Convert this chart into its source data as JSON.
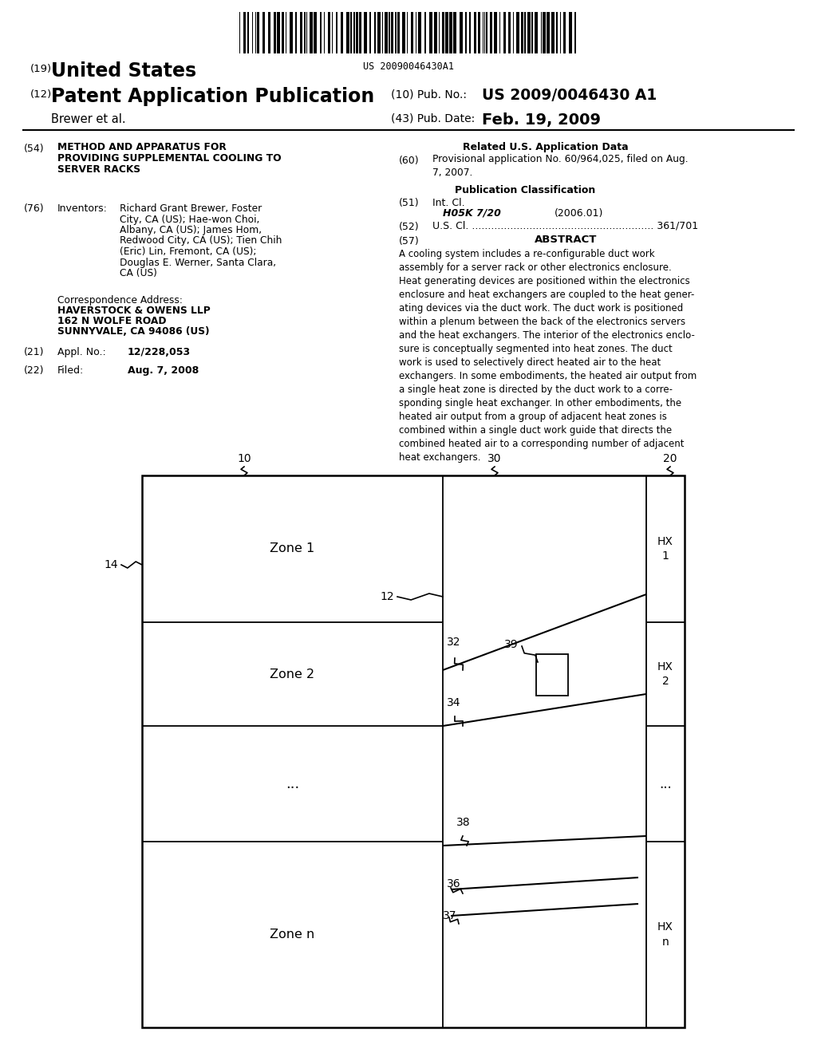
{
  "bg_color": "#ffffff",
  "barcode_text": "US 20090046430A1",
  "title_19": "(19)",
  "title_us": "United States",
  "title_12": "(12)",
  "title_patent": "Patent Application Publication",
  "title_brewer": "Brewer et al.",
  "pub_no_label": "(10) Pub. No.:",
  "pub_no_val": "US 2009/0046430 A1",
  "pub_date_label": "(43) Pub. Date:",
  "pub_date_val": "Feb. 19, 2009",
  "field54_num": "(54)",
  "field54_line1": "METHOD AND APPARATUS FOR",
  "field54_line2": "PROVIDING SUPPLEMENTAL COOLING TO",
  "field54_line3": "SERVER RACKS",
  "related_header": "Related U.S. Application Data",
  "field60_num": "(60)",
  "field60_text": "Provisional application No. 60/964,025, filed on Aug.\n7, 2007.",
  "pub_class_header": "Publication Classification",
  "field51_num": "(51)",
  "field51_label": "Int. Cl.",
  "field51_class": "H05K 7/20",
  "field51_year": "(2006.01)",
  "field52_num": "(52)",
  "field52_text": "U.S. Cl. ......................................................... 361/701",
  "field57_num": "(57)",
  "field57_label": "ABSTRACT",
  "abstract_text": "A cooling system includes a re-configurable duct work\nassembly for a server rack or other electronics enclosure.\nHeat generating devices are positioned within the electronics\nenclosure and heat exchangers are coupled to the heat gener-\nating devices via the duct work. The duct work is positioned\nwithin a plenum between the back of the electronics servers\nand the heat exchangers. The interior of the electronics enclo-\nsure is conceptually segmented into heat zones. The duct\nwork is used to selectively direct heated air to the heat\nexchangers. In some embodiments, the heated air output from\na single heat zone is directed by the duct work to a corre-\nsponding single heat exchanger. In other embodiments, the\nheated air output from a group of adjacent heat zones is\ncombined within a single duct work guide that directs the\ncombined heated air to a corresponding number of adjacent\nheat exchangers.",
  "field76_num": "(76)",
  "field76_label": "Inventors:",
  "inv_line1": "Richard Grant Brewer, Foster",
  "inv_line2": "City, CA (US); Hae-won Choi,",
  "inv_line3": "Albany, CA (US); James Hom,",
  "inv_line4": "Redwood City, CA (US); Tien Chih",
  "inv_line5": "(Eric) Lin, Fremont, CA (US);",
  "inv_line6": "Douglas E. Werner, Santa Clara,",
  "inv_line7": "CA (US)",
  "corr_label": "Correspondence Address:",
  "corr_name": "HAVERSTOCK & OWENS LLP",
  "corr_addr1": "162 N WOLFE ROAD",
  "corr_addr2": "SUNNYVALE, CA 94086 (US)",
  "field21_num": "(21)",
  "field21_label": "Appl. No.:",
  "field21_val": "12/228,053",
  "field22_num": "(22)",
  "field22_label": "Filed:",
  "field22_val": "Aug. 7, 2008",
  "diagram_label_10": "10",
  "diagram_label_20": "20",
  "diagram_label_30": "30",
  "diagram_label_14": "14",
  "diagram_label_12": "12",
  "diagram_label_32": "32",
  "diagram_label_34": "34",
  "diagram_label_36": "36",
  "diagram_label_37": "37",
  "diagram_label_38": "38",
  "diagram_label_39": "39",
  "diagram_label_hx1": "HX\n1",
  "diagram_label_hx2": "HX\n2",
  "diagram_label_hxn": "HX\nn",
  "diagram_label_zone1": "Zone 1",
  "diagram_label_zone2": "Zone 2",
  "diagram_label_zonen": "Zone n",
  "diagram_dots_left": "...",
  "diagram_dots_right": "..."
}
